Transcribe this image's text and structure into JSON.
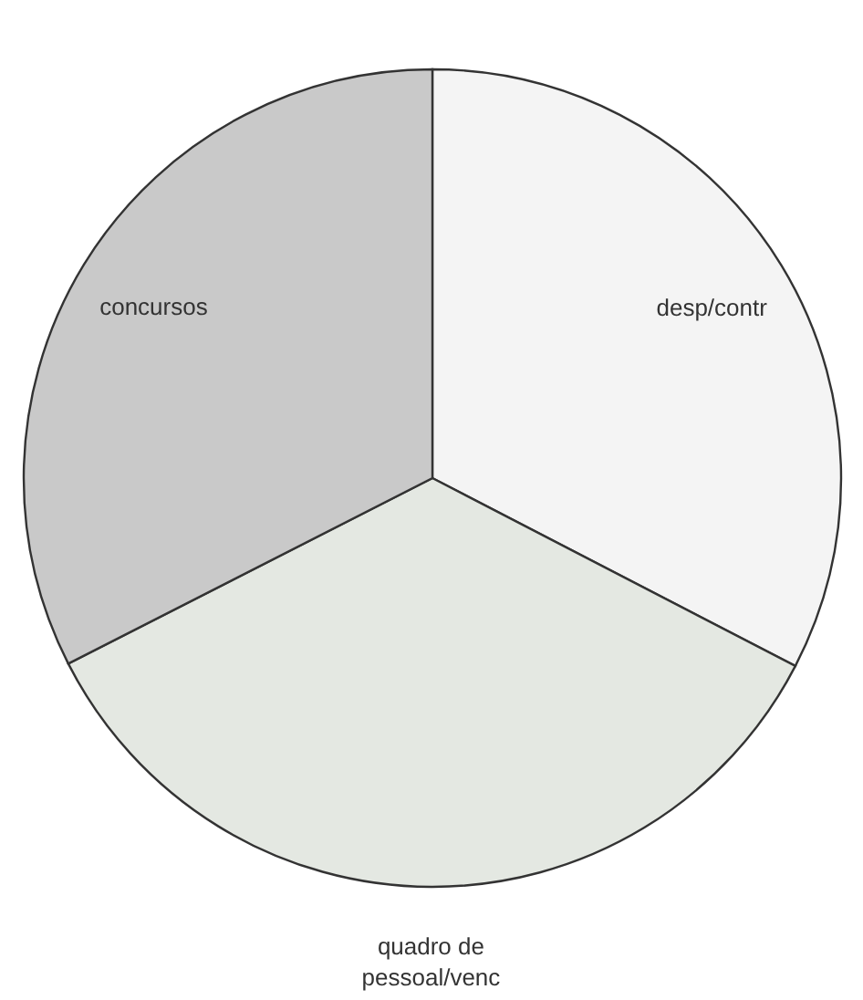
{
  "chart_data": {
    "type": "pie",
    "categories": [
      "desp/contr",
      "quadro de pessoal/venc",
      "concursos"
    ],
    "values": [
      32.6,
      34.9,
      32.5
    ],
    "colors": [
      "#f4f4f4",
      "#e4e8e2",
      "#c9c9c9"
    ]
  }
}
